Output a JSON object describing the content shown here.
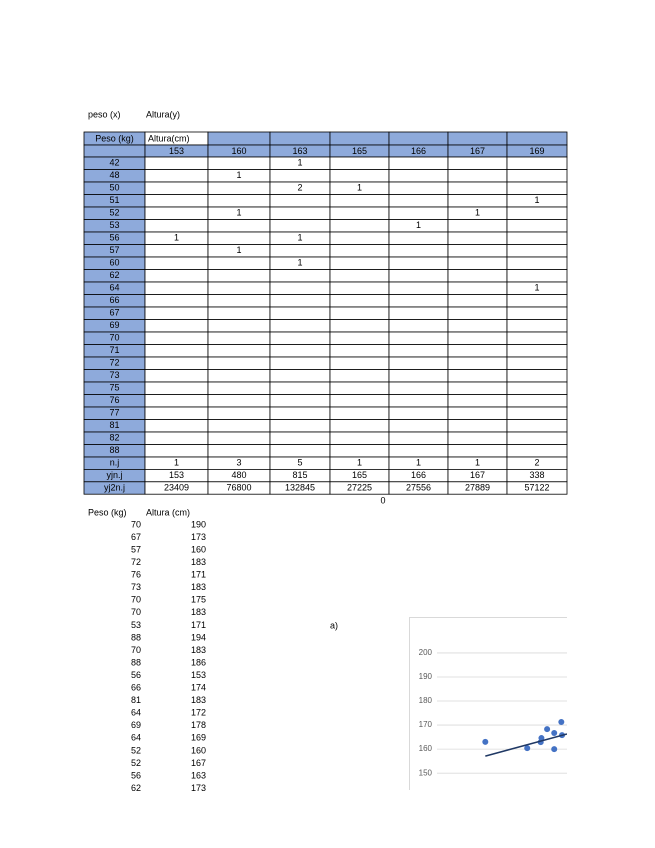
{
  "labels": {
    "x": "peso (x)",
    "y": "Altura(y)"
  },
  "table": {
    "header": [
      "Peso (kg)",
      "Altura(cm)"
    ],
    "heights": [
      153,
      160,
      163,
      165,
      166,
      167,
      169
    ],
    "rows": [
      [
        42,
        [
          null,
          null,
          1,
          null,
          null,
          null,
          null
        ]
      ],
      [
        48,
        [
          null,
          1,
          null,
          null,
          null,
          null,
          null
        ]
      ],
      [
        50,
        [
          null,
          null,
          2,
          1,
          null,
          null,
          null
        ]
      ],
      [
        51,
        [
          null,
          null,
          null,
          null,
          null,
          null,
          1
        ]
      ],
      [
        52,
        [
          null,
          1,
          null,
          null,
          null,
          1,
          null
        ]
      ],
      [
        53,
        [
          null,
          null,
          null,
          null,
          1,
          null,
          null
        ]
      ],
      [
        56,
        [
          1,
          null,
          1,
          null,
          null,
          null,
          null
        ]
      ],
      [
        57,
        [
          null,
          1,
          null,
          null,
          null,
          null,
          null
        ]
      ],
      [
        60,
        [
          null,
          null,
          1,
          null,
          null,
          null,
          null
        ]
      ],
      [
        62,
        [
          null,
          null,
          null,
          null,
          null,
          null,
          null
        ]
      ],
      [
        64,
        [
          null,
          null,
          null,
          null,
          null,
          null,
          1
        ]
      ],
      [
        66,
        [
          null,
          null,
          null,
          null,
          null,
          null,
          null
        ]
      ],
      [
        67,
        [
          null,
          null,
          null,
          null,
          null,
          null,
          null
        ]
      ],
      [
        69,
        [
          null,
          null,
          null,
          null,
          null,
          null,
          null
        ]
      ],
      [
        70,
        [
          null,
          null,
          null,
          null,
          null,
          null,
          null
        ]
      ],
      [
        71,
        [
          null,
          null,
          null,
          null,
          null,
          null,
          null
        ]
      ],
      [
        72,
        [
          null,
          null,
          null,
          null,
          null,
          null,
          null
        ]
      ],
      [
        73,
        [
          null,
          null,
          null,
          null,
          null,
          null,
          null
        ]
      ],
      [
        75,
        [
          null,
          null,
          null,
          null,
          null,
          null,
          null
        ]
      ],
      [
        76,
        [
          null,
          null,
          null,
          null,
          null,
          null,
          null
        ]
      ],
      [
        77,
        [
          null,
          null,
          null,
          null,
          null,
          null,
          null
        ]
      ],
      [
        81,
        [
          null,
          null,
          null,
          null,
          null,
          null,
          null
        ]
      ],
      [
        82,
        [
          null,
          null,
          null,
          null,
          null,
          null,
          null
        ]
      ],
      [
        88,
        [
          null,
          null,
          null,
          null,
          null,
          null,
          null
        ]
      ]
    ],
    "totals": [
      [
        "n.j",
        [
          1,
          3,
          5,
          1,
          1,
          1,
          2
        ]
      ],
      [
        "yjn.j",
        [
          153,
          480,
          815,
          165,
          166,
          167,
          338
        ]
      ],
      [
        "yj2n.j",
        [
          23409,
          76800,
          132845,
          27225,
          27556,
          27889,
          57122
        ]
      ]
    ]
  },
  "below_table": 0,
  "list": {
    "header": [
      "Peso (kg)",
      "Altura (cm)"
    ],
    "rows": [
      [
        70,
        190
      ],
      [
        67,
        173
      ],
      [
        57,
        160
      ],
      [
        72,
        183
      ],
      [
        76,
        171
      ],
      [
        73,
        183
      ],
      [
        70,
        175
      ],
      [
        70,
        183
      ],
      [
        53,
        171
      ],
      [
        88,
        194
      ],
      [
        70,
        183
      ],
      [
        88,
        186
      ],
      [
        56,
        153
      ],
      [
        66,
        174
      ],
      [
        81,
        183
      ],
      [
        64,
        172
      ],
      [
        69,
        178
      ],
      [
        64,
        169
      ],
      [
        52,
        160
      ],
      [
        52,
        167
      ],
      [
        56,
        163
      ],
      [
        62,
        173
      ]
    ]
  },
  "note": "a)",
  "chart_data": {
    "type": "scatter",
    "x": [
      56.8,
      62.7,
      64.6,
      64.7,
      65.5,
      66.5,
      66.5,
      67.5,
      67.6
    ],
    "y": [
      163,
      160.4,
      162.9,
      164.6,
      168.3,
      166.7,
      160,
      171.3,
      165.8
    ],
    "color": "#4472c4",
    "trendline": {
      "x": [
        56.8,
        68.3
      ],
      "y": [
        157.1,
        166.3
      ],
      "color": "#1f3864"
    },
    "xlim": [
      50,
      68.3
    ],
    "ylim": [
      143,
      203.3
    ],
    "yticks": [
      150,
      160,
      170,
      180,
      190,
      200
    ],
    "grid": true
  }
}
